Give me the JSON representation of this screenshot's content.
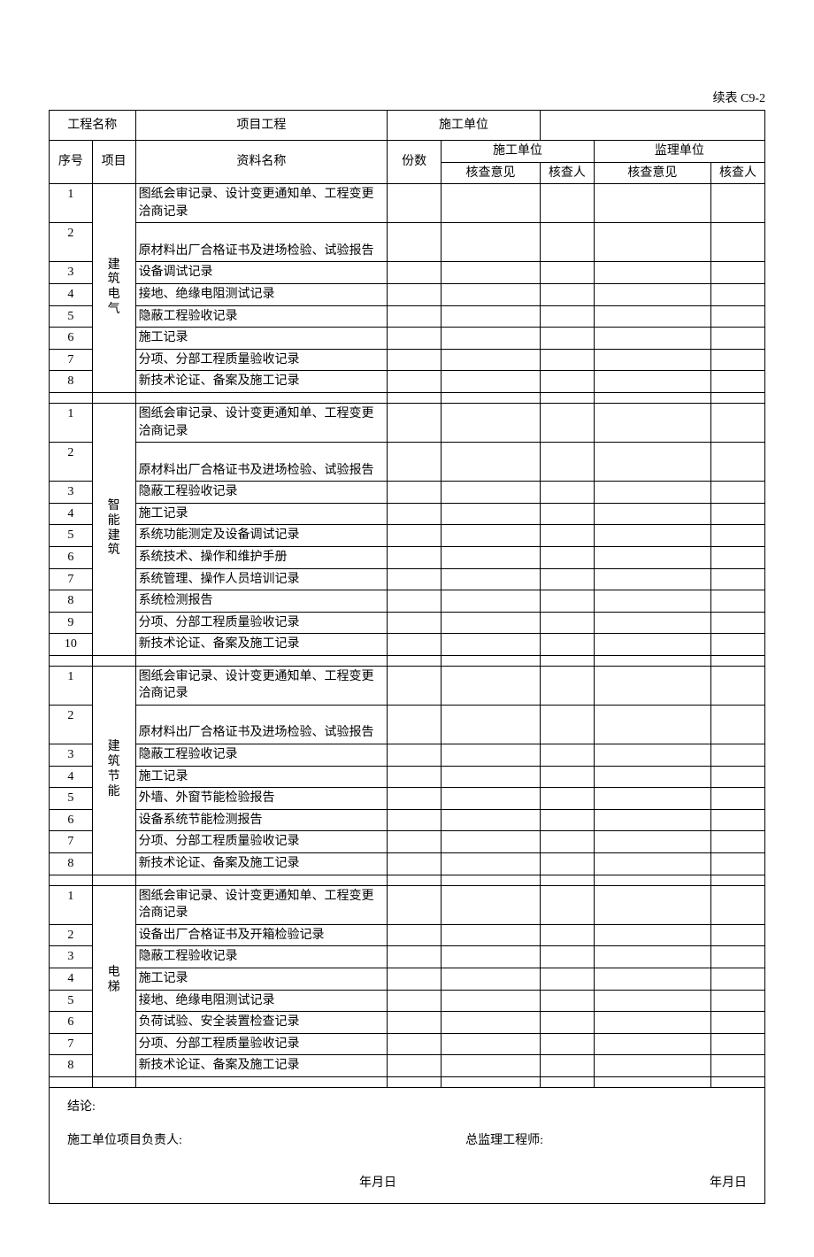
{
  "pageLabel": "续表 C9-2",
  "header": {
    "projectNameLabel": "工程名称",
    "projectNameValue": "项目工程",
    "builderLabel": "施工单位",
    "builderValue": ""
  },
  "columns": {
    "seq": "序号",
    "category": "项目",
    "docName": "资料名称",
    "qty": "份数",
    "builder": "施工单位",
    "supervisor": "监理单位",
    "opinion": "核查意见",
    "checker": "核查人"
  },
  "sections": [
    {
      "category": "建筑电气",
      "rows": [
        {
          "seq": "1",
          "name": "图纸会审记录、设计变更通知单、工程变更洽商记录",
          "tall": true
        },
        {
          "seq": "2",
          "name": "原材料出厂合格证书及进场检验、试验报告",
          "tall": true,
          "bottom": true
        },
        {
          "seq": "3",
          "name": "设备调试记录"
        },
        {
          "seq": "4",
          "name": "接地、绝缘电阻测试记录"
        },
        {
          "seq": "5",
          "name": "隐蔽工程验收记录"
        },
        {
          "seq": "6",
          "name": "施工记录"
        },
        {
          "seq": "7",
          "name": "分项、分部工程质量验收记录"
        },
        {
          "seq": "8",
          "name": "新技术论证、备案及施工记录"
        }
      ]
    },
    {
      "category": "智能建筑",
      "rows": [
        {
          "seq": "1",
          "name": "图纸会审记录、设计变更通知单、工程变更洽商记录",
          "tall": true
        },
        {
          "seq": "2",
          "name": "原材料出厂合格证书及进场检验、试验报告",
          "tall": true,
          "bottom": true
        },
        {
          "seq": "3",
          "name": "隐蔽工程验收记录"
        },
        {
          "seq": "4",
          "name": "施工记录"
        },
        {
          "seq": "5",
          "name": "系统功能测定及设备调试记录"
        },
        {
          "seq": "6",
          "name": "系统技术、操作和维护手册"
        },
        {
          "seq": "7",
          "name": "系统管理、操作人员培训记录"
        },
        {
          "seq": "8",
          "name": "系统检测报告"
        },
        {
          "seq": "9",
          "name": "分项、分部工程质量验收记录"
        },
        {
          "seq": "10",
          "name": "新技术论证、备案及施工记录"
        }
      ]
    },
    {
      "category": "建筑节能",
      "rows": [
        {
          "seq": "1",
          "name": "图纸会审记录、设计变更通知单、工程变更洽商记录",
          "tall": true
        },
        {
          "seq": "2",
          "name": "原材料出厂合格证书及进场检验、试验报告",
          "tall": true,
          "bottom": true
        },
        {
          "seq": "3",
          "name": "隐蔽工程验收记录"
        },
        {
          "seq": "4",
          "name": "施工记录"
        },
        {
          "seq": "5",
          "name": "外墙、外窗节能检验报告"
        },
        {
          "seq": "6",
          "name": "设备系统节能检测报告"
        },
        {
          "seq": "7",
          "name": "分项、分部工程质量验收记录"
        },
        {
          "seq": "8",
          "name": "新技术论证、备案及施工记录"
        }
      ]
    },
    {
      "category": "电梯",
      "rows": [
        {
          "seq": "1",
          "name": "图纸会审记录、设计变更通知单、工程变更洽商记录",
          "tall": true
        },
        {
          "seq": "2",
          "name": "设备出厂合格证书及开箱检验记录"
        },
        {
          "seq": "3",
          "name": "隐蔽工程验收记录"
        },
        {
          "seq": "4",
          "name": "施工记录"
        },
        {
          "seq": "5",
          "name": "接地、绝缘电阻测试记录"
        },
        {
          "seq": "6",
          "name": "负荷试验、安全装置检查记录"
        },
        {
          "seq": "7",
          "name": "分项、分部工程质量验收记录"
        },
        {
          "seq": "8",
          "name": "新技术论证、备案及施工记录"
        }
      ]
    }
  ],
  "footer": {
    "conclusion": "结论:",
    "builderPM": "施工单位项目负责人:",
    "supervisorEng": "总监理工程师:",
    "date": "年月日"
  },
  "style": {
    "fontFamily": "SimSun",
    "fontSize": 14,
    "textColor": "#000000",
    "borderColor": "#000000",
    "backgroundColor": "#ffffff"
  }
}
